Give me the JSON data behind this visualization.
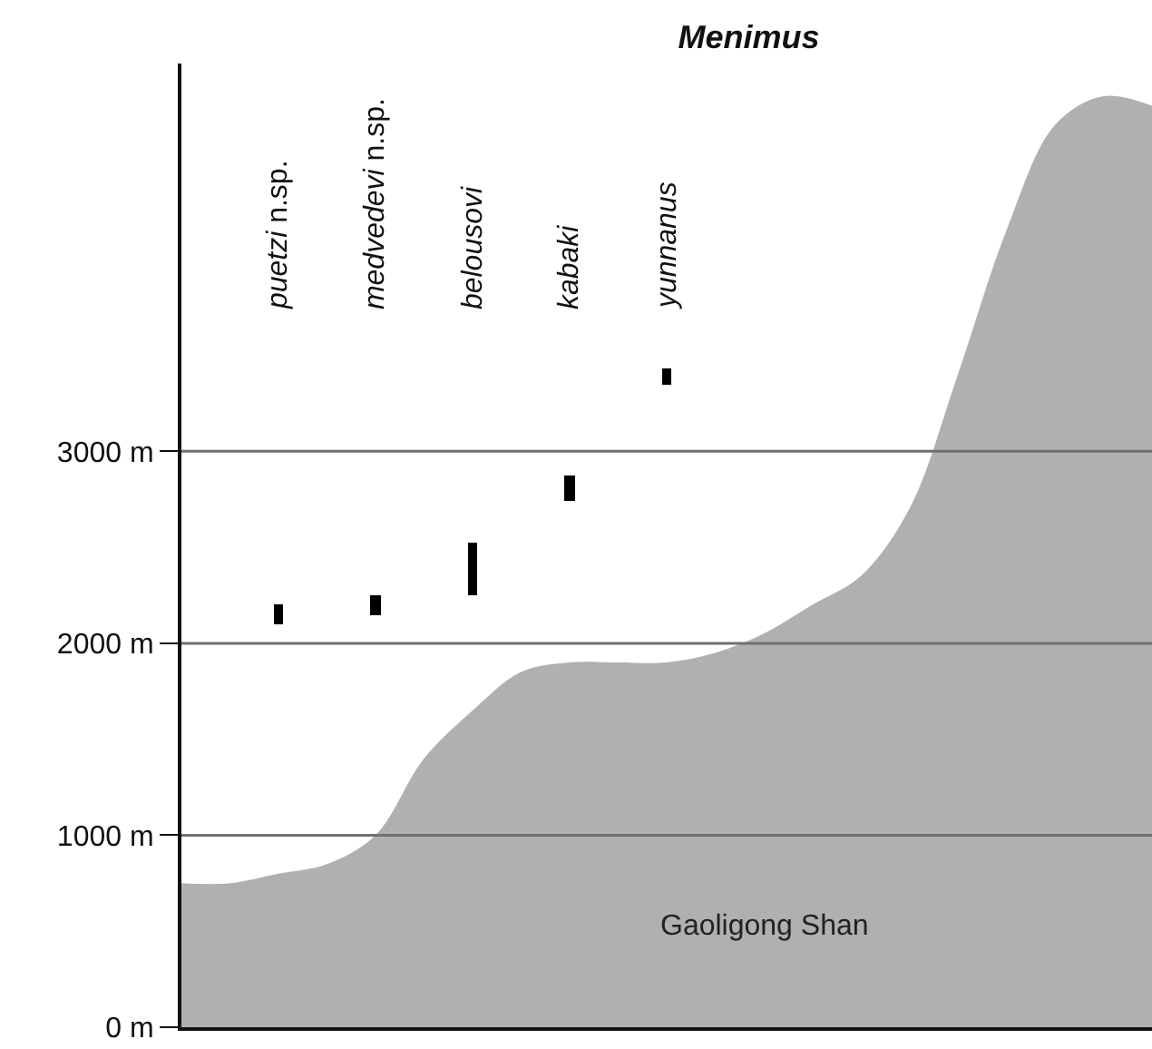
{
  "chart_data": {
    "type": "bar",
    "title": "Menimus",
    "categories": [
      null,
      null,
      "puetzi n.sp.",
      null,
      "medvedevi n.sp.",
      null,
      "belousovi",
      null,
      "kabaki",
      null,
      "yunnanus",
      null,
      null,
      null,
      null,
      null,
      null,
      null,
      null,
      null,
      null
    ],
    "series": [
      {
        "color": "#000000",
        "base": [
          null,
          null,
          2100,
          null,
          2150,
          null,
          2250,
          null,
          2740,
          null,
          3350,
          null,
          null,
          null,
          null,
          null,
          null,
          null,
          null,
          null,
          null
        ],
        "values": [
          null,
          null,
          100,
          null,
          100,
          null,
          270,
          null,
          130,
          null,
          80,
          null,
          null,
          null,
          null,
          null,
          null,
          null,
          null,
          null,
          null
        ]
      },
      {
        "type": "area",
        "name": "Gaoligong Shan",
        "color": "#b0b0b0",
        "values": [
          750,
          750,
          800,
          850,
          1000,
          1400,
          1650,
          1850,
          1900,
          1900,
          1900,
          1950,
          2050,
          2200,
          2350,
          2700,
          3400,
          4150,
          4700,
          4850,
          4800
        ]
      }
    ],
    "ylim": [
      0,
      5020
    ],
    "yticks": [
      {
        "value": 0,
        "label": "0 m"
      },
      {
        "value": 1000,
        "label": "1000 m"
      },
      {
        "value": 2000,
        "label": "2000 m"
      },
      {
        "value": 3000,
        "label": "3000 m"
      }
    ],
    "grid": "y",
    "tick_labels": "y"
  }
}
